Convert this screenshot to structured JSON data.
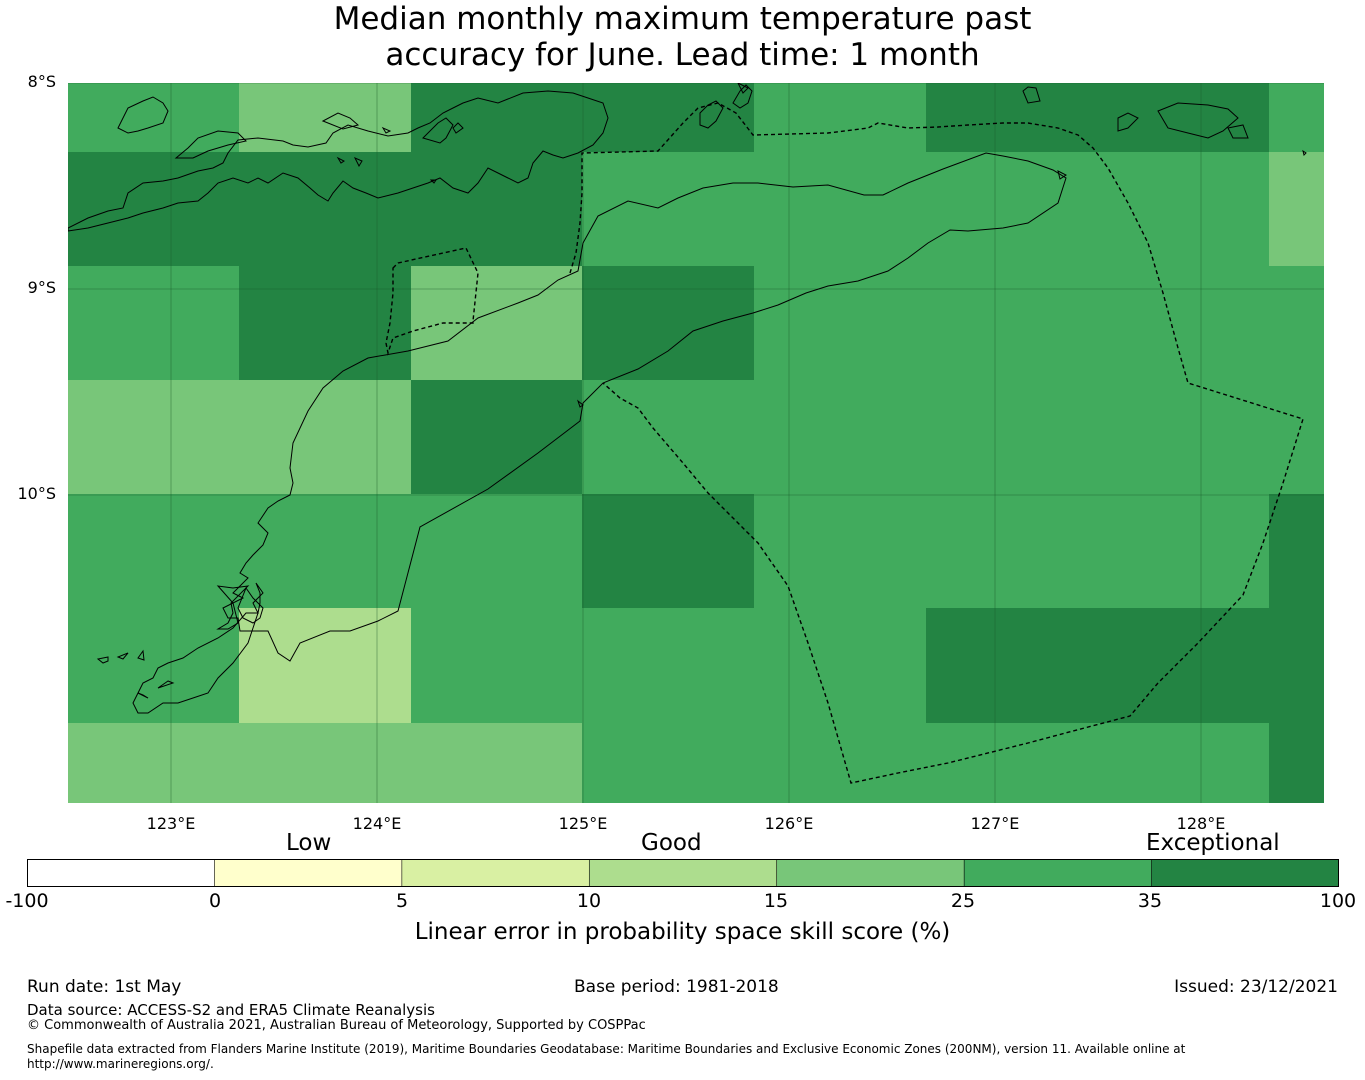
{
  "title": {
    "line1": "Median monthly maximum temperature past",
    "line2": "accuracy for June. Lead time: 1 month"
  },
  "map": {
    "lon_range": [
      122.5,
      128.6
    ],
    "lat_range": [
      -11.5,
      -8.0
    ],
    "lat_labels": [
      "8°S",
      "9°S",
      "10°S"
    ],
    "lon_labels": [
      "123°E",
      "124°E",
      "125°E",
      "126°E",
      "127°E",
      "128°E"
    ],
    "cell_scores": [
      [
        25,
        15,
        35,
        35,
        25,
        35,
        35,
        25
      ],
      [
        35,
        35,
        35,
        25,
        25,
        25,
        25,
        15
      ],
      [
        25,
        35,
        15,
        35,
        25,
        25,
        25,
        25
      ],
      [
        15,
        15,
        35,
        25,
        25,
        25,
        25,
        25
      ],
      [
        25,
        25,
        25,
        35,
        25,
        25,
        25,
        35
      ],
      [
        25,
        10,
        25,
        25,
        25,
        35,
        35,
        35
      ],
      [
        15,
        15,
        15,
        25,
        25,
        25,
        25,
        35
      ]
    ]
  },
  "legend": {
    "categories": [
      "Low",
      "Good",
      "Exceptional"
    ],
    "ticks": [
      "-100",
      "0",
      "5",
      "10",
      "15",
      "25",
      "35",
      "100"
    ],
    "colors": [
      "#ffffff",
      "#ffffcc",
      "#d9f0a3",
      "#addd8e",
      "#78c679",
      "#41ab5d",
      "#238443"
    ],
    "label": "Linear error in probability space skill score (%)"
  },
  "footer": {
    "run_date": "Run date: 1st May",
    "base_period": "Base period: 1981-2018",
    "issued": "Issued: 23/12/2021",
    "data_source": "Data source: ACCESS-S2 and ERA5 Climate Reanalysis",
    "copyright": "© Commonwealth of Australia 2021, Australian Bureau of Meteorology, Supported by COSPPac",
    "shapefile_line1": "Shapefile data extracted from Flanders Marine Institute (2019), Maritime Boundaries Geodatabase: Maritime Boundaries and Exclusive Economic Zones (200NM), version 11. Available online at",
    "shapefile_line2": "http://www.marineregions.org/."
  }
}
